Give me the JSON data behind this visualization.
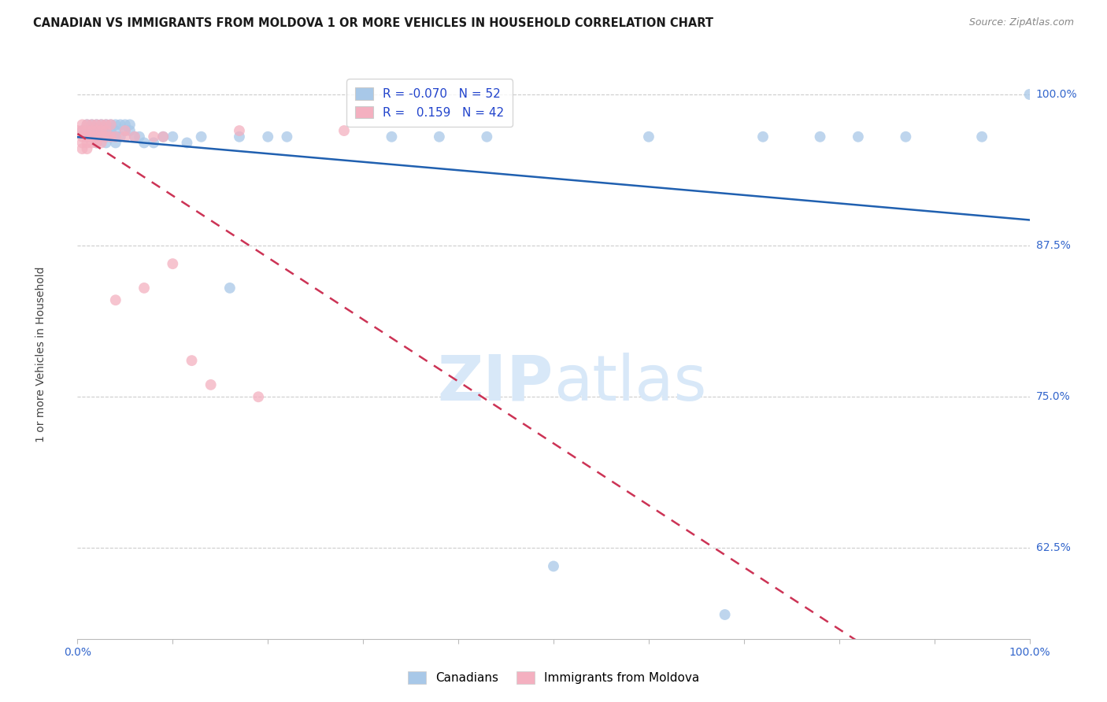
{
  "title": "CANADIAN VS IMMIGRANTS FROM MOLDOVA 1 OR MORE VEHICLES IN HOUSEHOLD CORRELATION CHART",
  "source": "Source: ZipAtlas.com",
  "ylabel": "1 or more Vehicles in Household",
  "ytick_labels": [
    "100.0%",
    "87.5%",
    "75.0%",
    "62.5%"
  ],
  "ytick_values": [
    1.0,
    0.875,
    0.75,
    0.625
  ],
  "legend_blue_R": "-0.070",
  "legend_blue_N": "52",
  "legend_pink_R": "0.159",
  "legend_pink_N": "42",
  "blue_color": "#a8c8e8",
  "pink_color": "#f4b0c0",
  "trend_blue": "#2060b0",
  "trend_pink": "#cc3355",
  "watermark_color": "#d8e8f8",
  "blue_scatter_data": [
    [
      0.005,
      0.97
    ],
    [
      0.01,
      0.975
    ],
    [
      0.01,
      0.965
    ],
    [
      0.015,
      0.975
    ],
    [
      0.015,
      0.97
    ],
    [
      0.02,
      0.975
    ],
    [
      0.02,
      0.97
    ],
    [
      0.02,
      0.965
    ],
    [
      0.02,
      0.96
    ],
    [
      0.025,
      0.975
    ],
    [
      0.025,
      0.97
    ],
    [
      0.03,
      0.975
    ],
    [
      0.03,
      0.97
    ],
    [
      0.03,
      0.965
    ],
    [
      0.03,
      0.96
    ],
    [
      0.035,
      0.975
    ],
    [
      0.035,
      0.97
    ],
    [
      0.035,
      0.965
    ],
    [
      0.04,
      0.975
    ],
    [
      0.04,
      0.97
    ],
    [
      0.04,
      0.965
    ],
    [
      0.04,
      0.96
    ],
    [
      0.045,
      0.975
    ],
    [
      0.045,
      0.965
    ],
    [
      0.05,
      0.975
    ],
    [
      0.05,
      0.97
    ],
    [
      0.055,
      0.975
    ],
    [
      0.055,
      0.97
    ],
    [
      0.06,
      0.965
    ],
    [
      0.065,
      0.965
    ],
    [
      0.07,
      0.96
    ],
    [
      0.08,
      0.96
    ],
    [
      0.09,
      0.965
    ],
    [
      0.1,
      0.965
    ],
    [
      0.115,
      0.96
    ],
    [
      0.13,
      0.965
    ],
    [
      0.16,
      0.84
    ],
    [
      0.17,
      0.965
    ],
    [
      0.2,
      0.965
    ],
    [
      0.22,
      0.965
    ],
    [
      0.33,
      0.965
    ],
    [
      0.38,
      0.965
    ],
    [
      0.43,
      0.965
    ],
    [
      0.5,
      0.61
    ],
    [
      0.6,
      0.965
    ],
    [
      0.68,
      0.57
    ],
    [
      0.72,
      0.965
    ],
    [
      0.78,
      0.965
    ],
    [
      0.82,
      0.965
    ],
    [
      0.87,
      0.965
    ],
    [
      0.95,
      0.965
    ],
    [
      1.0,
      1.0
    ]
  ],
  "pink_scatter_data": [
    [
      0.0,
      0.97
    ],
    [
      0.005,
      0.975
    ],
    [
      0.005,
      0.97
    ],
    [
      0.005,
      0.965
    ],
    [
      0.005,
      0.96
    ],
    [
      0.005,
      0.955
    ],
    [
      0.01,
      0.975
    ],
    [
      0.01,
      0.97
    ],
    [
      0.01,
      0.965
    ],
    [
      0.01,
      0.96
    ],
    [
      0.01,
      0.955
    ],
    [
      0.015,
      0.975
    ],
    [
      0.015,
      0.97
    ],
    [
      0.015,
      0.965
    ],
    [
      0.015,
      0.96
    ],
    [
      0.02,
      0.975
    ],
    [
      0.02,
      0.97
    ],
    [
      0.02,
      0.965
    ],
    [
      0.02,
      0.96
    ],
    [
      0.025,
      0.975
    ],
    [
      0.025,
      0.97
    ],
    [
      0.025,
      0.965
    ],
    [
      0.025,
      0.96
    ],
    [
      0.03,
      0.975
    ],
    [
      0.03,
      0.97
    ],
    [
      0.03,
      0.965
    ],
    [
      0.035,
      0.975
    ],
    [
      0.035,
      0.965
    ],
    [
      0.04,
      0.83
    ],
    [
      0.04,
      0.965
    ],
    [
      0.05,
      0.97
    ],
    [
      0.05,
      0.965
    ],
    [
      0.06,
      0.965
    ],
    [
      0.07,
      0.84
    ],
    [
      0.08,
      0.965
    ],
    [
      0.09,
      0.965
    ],
    [
      0.1,
      0.86
    ],
    [
      0.12,
      0.78
    ],
    [
      0.14,
      0.76
    ],
    [
      0.17,
      0.97
    ],
    [
      0.19,
      0.75
    ],
    [
      0.28,
      0.97
    ]
  ]
}
